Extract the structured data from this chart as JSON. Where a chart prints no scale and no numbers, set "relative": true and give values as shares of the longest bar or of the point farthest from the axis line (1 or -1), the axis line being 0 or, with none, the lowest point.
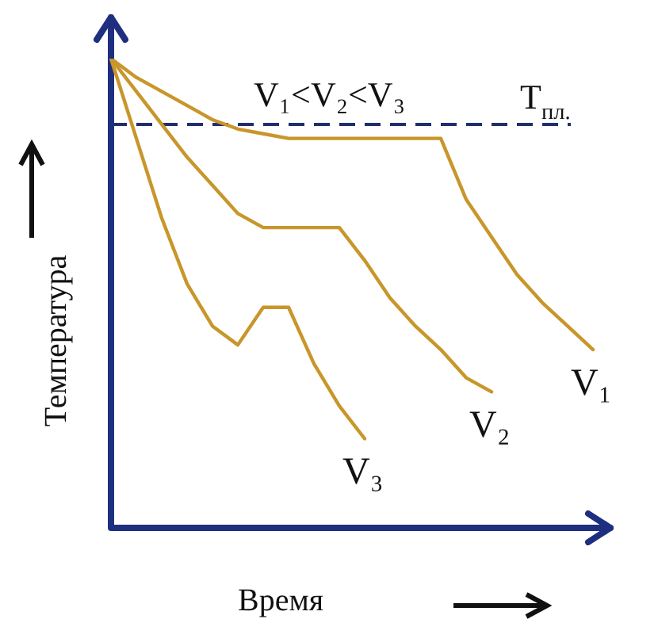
{
  "chart_data": {
    "type": "line",
    "relative": true,
    "xlabel": "Время",
    "ylabel": "Температура",
    "marker": "none",
    "categories": [
      null,
      null,
      null,
      null,
      null,
      null,
      null,
      null,
      null,
      null,
      null,
      null,
      null,
      null,
      null,
      null,
      null,
      null,
      null,
      null,
      null
    ],
    "annotations": [
      "V₁<V₂<V₃"
    ],
    "ref_lines": [
      {
        "axis": "y",
        "value": 0.86,
        "label": "T$_{пл.}$",
        "color": "#1f2f6e",
        "line_style": "dashed"
      }
    ],
    "series": [
      {
        "name": "V₁",
        "color": "#c8962a",
        "values": [
          1,
          0.96,
          0.93,
          0.9,
          0.87,
          0.85,
          0.84,
          0.83,
          0.83,
          0.83,
          0.83,
          0.83,
          0.83,
          0.83,
          0.7,
          0.62,
          0.54,
          0.48,
          0.43,
          0.38,
          null
        ]
      },
      {
        "name": "V₂",
        "color": "#c8962a",
        "values": [
          1,
          0.93,
          0.86,
          0.79,
          0.73,
          0.67,
          0.64,
          0.64,
          0.64,
          0.64,
          0.57,
          0.49,
          0.43,
          0.38,
          0.32,
          0.29,
          null,
          null,
          null,
          null,
          null
        ]
      },
      {
        "name": "V₃",
        "color": "#c8962a",
        "values": [
          1,
          0.83,
          0.66,
          0.52,
          0.43,
          0.39,
          0.47,
          0.47,
          0.35,
          0.26,
          0.19,
          null,
          null,
          null,
          null,
          null,
          null,
          null,
          null,
          null,
          null
        ]
      }
    ]
  }
}
